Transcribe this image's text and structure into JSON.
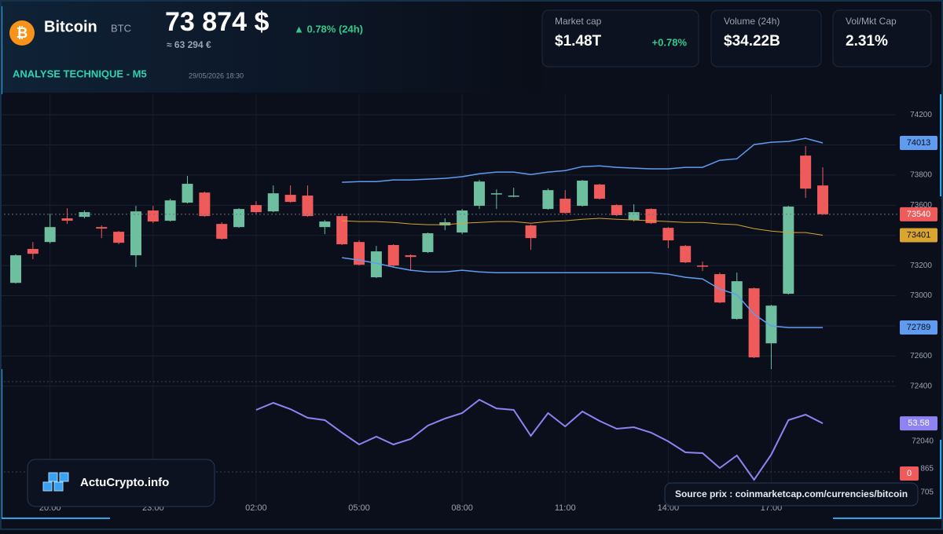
{
  "header": {
    "name": "Bitcoin",
    "symbol": "BTC",
    "price": "73 874 $",
    "change": "▲ 0.78% (24h)",
    "price_eur": "≈ 63 294 €",
    "section": "ANALYSE TECHNIQUE - M5",
    "timestamp": "29/05/2026 18:30"
  },
  "stats": [
    {
      "label": "Market cap",
      "value": "$1.48T",
      "change": "+0.78%"
    },
    {
      "label": "Volume (24h)",
      "value": "$34.22B"
    },
    {
      "label": "Vol/Mkt Cap",
      "value": "2.31%"
    }
  ],
  "footer": {
    "brand": "ActuCrypto.info",
    "source": "Source prix : coinmarketcap.com/currencies/bitcoin"
  },
  "chart_data": {
    "type": "candlestick",
    "categories": [
      null,
      null,
      "20:00",
      null,
      null,
      null,
      null,
      null,
      "23:00",
      null,
      null,
      null,
      null,
      null,
      "02:00",
      null,
      null,
      null,
      null,
      null,
      "05:00",
      null,
      null,
      null,
      null,
      null,
      "08:00",
      null,
      null,
      null,
      null,
      null,
      "11:00",
      null,
      null,
      null,
      null,
      null,
      "14:00",
      null,
      null,
      null,
      null,
      null,
      "17:00",
      null,
      null,
      null
    ],
    "open": [
      73085,
      73310,
      73356,
      73513,
      73523,
      73455,
      73424,
      73268,
      73565,
      73497,
      73617,
      73684,
      73476,
      73455,
      73601,
      73559,
      73669,
      73664,
      73455,
      73528,
      73356,
      73122,
      73336,
      73268,
      73289,
      73466,
      73419,
      73596,
      73674,
      73658,
      73466,
      73575,
      73643,
      73596,
      73737,
      73601,
      73502,
      73575,
      73450,
      73330,
      73200,
      73143,
      72846,
      73049,
      72684,
      73013,
      73929,
      73731
    ],
    "high": [
      73275,
      73356,
      73544,
      73580,
      73565,
      73466,
      73429,
      73596,
      73596,
      73643,
      73794,
      73690,
      73487,
      73580,
      73627,
      73731,
      73731,
      73731,
      73502,
      73544,
      73367,
      73330,
      73341,
      73273,
      73419,
      73513,
      73575,
      73768,
      73705,
      73716,
      73471,
      73711,
      73700,
      73768,
      73742,
      73606,
      73606,
      73580,
      73455,
      73336,
      73226,
      73153,
      73153,
      73054,
      72940,
      73596,
      73992,
      73851
    ],
    "low": [
      73080,
      73242,
      73346,
      73476,
      73513,
      73382,
      73341,
      73190,
      73481,
      73492,
      73612,
      73523,
      73372,
      73450,
      73544,
      73554,
      73617,
      73523,
      73408,
      73336,
      73200,
      73117,
      73190,
      73164,
      73283,
      73434,
      73408,
      73575,
      73575,
      73653,
      73304,
      73570,
      73544,
      73591,
      73638,
      73528,
      73492,
      73476,
      73315,
      73216,
      73164,
      72950,
      72841,
      72586,
      72513,
      73008,
      73648,
      73535
    ],
    "close": [
      73268,
      73278,
      73455,
      73497,
      73554,
      73445,
      73351,
      73559,
      73492,
      73632,
      73742,
      73528,
      73377,
      73575,
      73554,
      73679,
      73622,
      73528,
      73492,
      73341,
      73205,
      73294,
      73200,
      73257,
      73414,
      73487,
      73565,
      73757,
      73679,
      73664,
      73382,
      73700,
      73549,
      73763,
      73643,
      73534,
      73554,
      73481,
      73367,
      73221,
      73195,
      72955,
      73096,
      72591,
      72934,
      73591,
      73710,
      73540
    ],
    "up_color": "#6dbf9f",
    "down_color": "#ef5b5b",
    "bands": {
      "color": "#5f9cf0",
      "middle_color": "#d9a52e",
      "upper": [
        null,
        null,
        null,
        null,
        null,
        null,
        null,
        null,
        null,
        null,
        null,
        null,
        null,
        null,
        null,
        null,
        null,
        null,
        null,
        73752,
        73757,
        73757,
        73768,
        73768,
        73773,
        73778,
        73789,
        73809,
        73820,
        73820,
        73804,
        73820,
        73830,
        73856,
        73861,
        73851,
        73846,
        73841,
        73841,
        73851,
        73851,
        73898,
        73908,
        74002,
        74018,
        74023,
        74044,
        74013
      ],
      "middle": [
        null,
        null,
        null,
        null,
        null,
        null,
        null,
        null,
        null,
        null,
        null,
        null,
        null,
        null,
        null,
        null,
        null,
        null,
        null,
        73497,
        73492,
        73492,
        73486,
        73476,
        73471,
        73471,
        73481,
        73486,
        73492,
        73492,
        73481,
        73492,
        73497,
        73507,
        73513,
        73507,
        73502,
        73497,
        73492,
        73486,
        73486,
        73476,
        73471,
        73445,
        73429,
        73419,
        73419,
        73401
      ],
      "lower": [
        null,
        null,
        null,
        null,
        null,
        null,
        null,
        null,
        null,
        null,
        null,
        null,
        null,
        null,
        null,
        null,
        null,
        null,
        null,
        73252,
        73236,
        73216,
        73190,
        73169,
        73158,
        73158,
        73169,
        73158,
        73153,
        73153,
        73153,
        73153,
        73153,
        73153,
        73153,
        73153,
        73153,
        73153,
        73143,
        73122,
        73111,
        73044,
        73007,
        72877,
        72799,
        72789,
        72789,
        72789
      ]
    },
    "rsi": {
      "color": "#8f82f2",
      "axis": "y2",
      "values": [
        null,
        null,
        null,
        null,
        null,
        null,
        null,
        null,
        null,
        null,
        null,
        null,
        null,
        null,
        66.2,
        72.8,
        66.9,
        58.8,
        56.6,
        44.9,
        33.8,
        41.2,
        33.8,
        39.0,
        51.5,
        58.1,
        63.2,
        75.7,
        67.6,
        66.2,
        41.9,
        63.2,
        50.7,
        64.7,
        55.9,
        48.5,
        50.0,
        44.9,
        36.8,
        26.5,
        25.7,
        11.8,
        23.5,
        0.7,
        24.3,
        56.6,
        61.8,
        53.58
      ]
    },
    "y2_badge": 0,
    "y2_badge_color": "#ef5b5b",
    "ylim": [
      71680,
      74336
    ],
    "yticks": [
      72400,
      72600,
      72800,
      73000,
      73200,
      73400,
      73600,
      73800,
      74000,
      74200
    ],
    "y2lim": [
      0,
      100
    ],
    "lower_axis_labels": [
      "72040",
      "865",
      "705"
    ],
    "grid": true
  }
}
